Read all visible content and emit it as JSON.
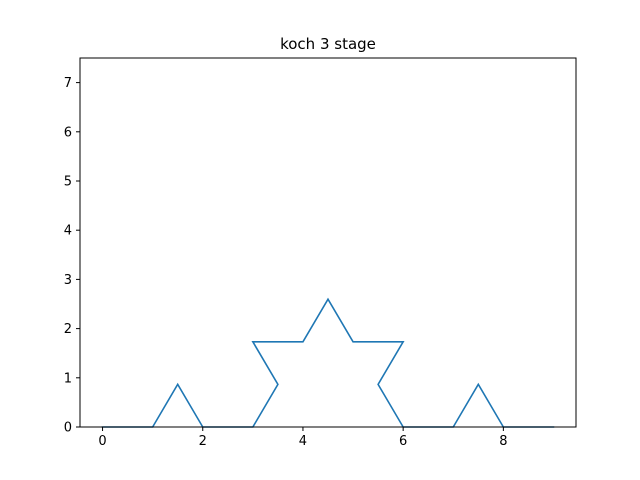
{
  "chart_data": {
    "type": "line",
    "title": "koch 3 stage",
    "xlabel": "",
    "ylabel": "",
    "xlim": [
      -0.45,
      9.45
    ],
    "ylim": [
      0,
      7.5
    ],
    "xticks": [
      0,
      2,
      4,
      6,
      8
    ],
    "yticks": [
      0,
      1,
      2,
      3,
      4,
      5,
      6,
      7
    ],
    "xtick_labels": [
      "0",
      "2",
      "4",
      "6",
      "8"
    ],
    "ytick_labels": [
      "0",
      "1",
      "2",
      "3",
      "4",
      "5",
      "6",
      "7"
    ],
    "grid": false,
    "series": [
      {
        "color": "#1f77b4",
        "x": [
          0,
          1,
          1.5,
          2,
          3,
          3.5,
          3,
          4,
          4.5,
          5,
          6,
          5.5,
          6,
          7,
          7.5,
          8,
          9
        ],
        "y": [
          0,
          0,
          0.866,
          0,
          0,
          0.866,
          1.732,
          1.732,
          2.598,
          1.732,
          1.732,
          0.866,
          0,
          0,
          0.866,
          0,
          0
        ]
      }
    ]
  }
}
